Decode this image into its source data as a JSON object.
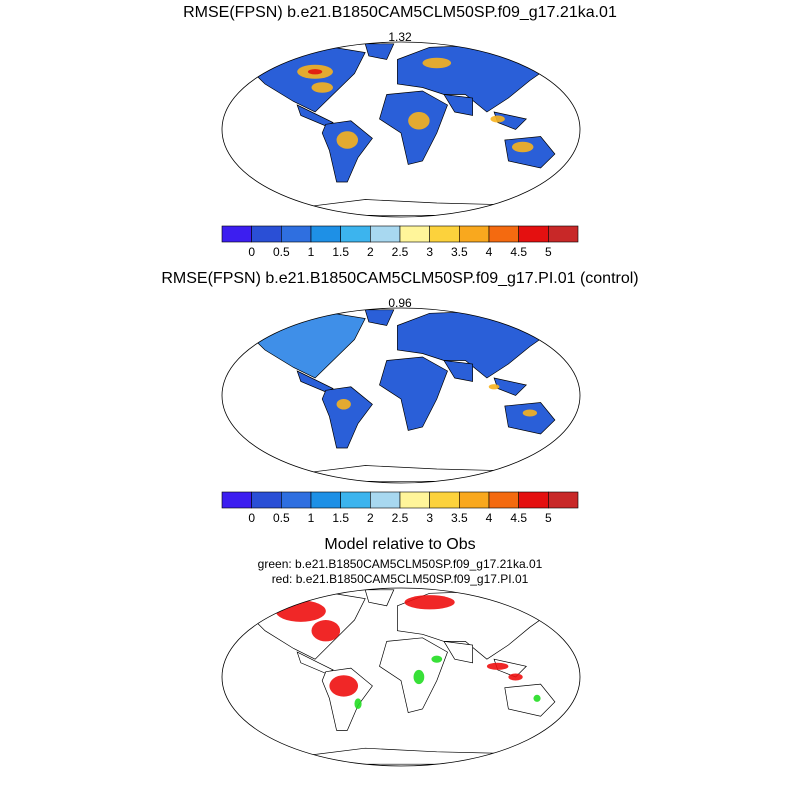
{
  "panel1": {
    "title": "RMSE(FPSN) b.e21.B1850CAM5CLM50SP.f09_g17.21ka.01",
    "value": "1.32"
  },
  "panel2": {
    "title": "RMSE(FPSN) b.e21.B1850CAM5CLM50SP.f09_g17.PI.01 (control)",
    "value": "0.96"
  },
  "panel3": {
    "title": "Model relative to Obs",
    "green_label": "green: b.e21.B1850CAM5CLM50SP.f09_g17.21ka.01",
    "red_label": "red: b.e21.B1850CAM5CLM50SP.f09_g17.PI.01"
  },
  "colorbar": {
    "tick_labels": [
      "0",
      "0.5",
      "1",
      "1.5",
      "2",
      "2.5",
      "3",
      "3.5",
      "4",
      "4.5",
      "5"
    ],
    "colors": [
      "#3c1ef0",
      "#2a4fd6",
      "#2f6fe0",
      "#1e90e6",
      "#3cb4ee",
      "#a8d8f0",
      "#fff59a",
      "#fcd23c",
      "#f9a81e",
      "#f46a10",
      "#e41010",
      "#c82828"
    ]
  },
  "map_colors": {
    "land": "#2a5fd8",
    "land_light": "#3f8fe8",
    "warm": "#f7b21e",
    "hot": "#e01010",
    "good": "#22dd22",
    "bad": "#ee1010"
  }
}
